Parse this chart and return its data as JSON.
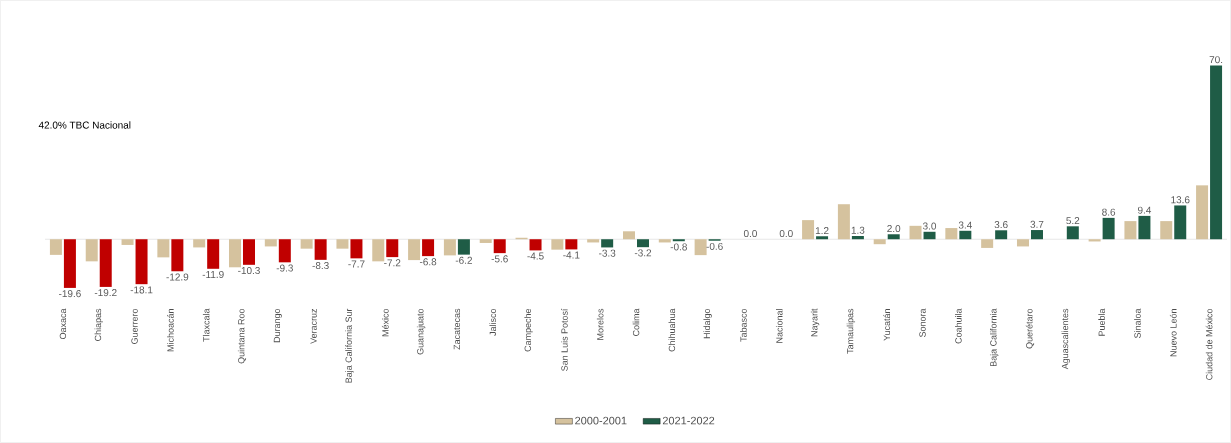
{
  "chart_data": {
    "type": "bar",
    "categories": [
      "Oaxaca",
      "Chiapas",
      "Guerrero",
      "Michoacán",
      "Tlaxcala",
      "Quintana Roo",
      "Durango",
      "Veracruz",
      "Baja California Sur",
      "México",
      "Guanajuato",
      "Zacatecas",
      "Jalisco",
      "Campeche",
      "San Luis Potosí",
      "Morelos",
      "Colima",
      "Chihuahua",
      "Hidalgo",
      "Tabasco",
      "Nacional",
      "Nayarit",
      "Tamaulipas",
      "Yucatán",
      "Sonora",
      "Coahuila",
      "Baja California",
      "Querétaro",
      "Aguascalientes",
      "Puebla",
      "Sinaloa",
      "Nuevo León",
      "Ciudad de México"
    ],
    "series": [
      {
        "name": "2000-2001",
        "color": "#d5c29e",
        "values": [
          -6.3,
          -8.9,
          -2.3,
          -7.3,
          -3.3,
          -11.3,
          -2.9,
          -3.8,
          -3.8,
          -8.9,
          -8.4,
          -6.5,
          -1.5,
          0.6,
          -4.2,
          -1.3,
          3.2,
          -1.3,
          -6.4,
          0,
          0,
          7.7,
          14.1,
          -2.0,
          5.4,
          4.5,
          -3.5,
          -2.9,
          0,
          -0.9,
          7.3,
          7.3,
          21.7
        ]
      },
      {
        "name": "2021-2022",
        "color": "#1f5c46",
        "values": [
          -19.6,
          -19.2,
          -18.1,
          -12.9,
          -11.9,
          -10.3,
          -9.3,
          -8.3,
          -7.7,
          -7.2,
          -6.8,
          -6.2,
          -5.6,
          -4.5,
          -4.1,
          -3.3,
          -3.2,
          -0.8,
          -0.6,
          0,
          0,
          1.2,
          1.3,
          2.0,
          3.0,
          3.4,
          3.6,
          3.7,
          5.2,
          8.6,
          9.4,
          13.6,
          70
        ],
        "colors": [
          "#c00000",
          "#c00000",
          "#c00000",
          "#c00000",
          "#c00000",
          "#c00000",
          "#c00000",
          "#c00000",
          "#c00000",
          "#c00000",
          "#c00000",
          "#1f5c46",
          "#c00000",
          "#c00000",
          "#c00000",
          "#1f5c46",
          "#1f5c46",
          "#1f5c46",
          "#1f5c46",
          "#1f5c46",
          "#1f5c46",
          "#1f5c46",
          "#1f5c46",
          "#1f5c46",
          "#1f5c46",
          "#1f5c46",
          "#1f5c46",
          "#1f5c46",
          "#1f5c46",
          "#1f5c46",
          "#1f5c46",
          "#1f5c46",
          "#1f5c46"
        ],
        "value_labels": [
          "-19.6",
          "-19.2",
          "-18.1",
          "-12.9",
          "-11.9",
          "-10.3",
          "-9.3",
          "-8.3",
          "-7.7",
          "-7.2",
          "-6.8",
          "-6.2",
          "-5.6",
          "-4.5",
          "-4.1",
          "-3.3",
          "-3.2",
          "-0.8",
          "-0.6",
          "0.0",
          "0.0",
          "1.2",
          "1.3",
          "2.0",
          "3.0",
          "3.4",
          "3.6",
          "3.7",
          "5.2",
          "8.6",
          "9.4",
          "13.6",
          "70."
        ]
      }
    ],
    "annotations": [
      "42.0% TBC Nacional"
    ],
    "legend": "bottom"
  }
}
